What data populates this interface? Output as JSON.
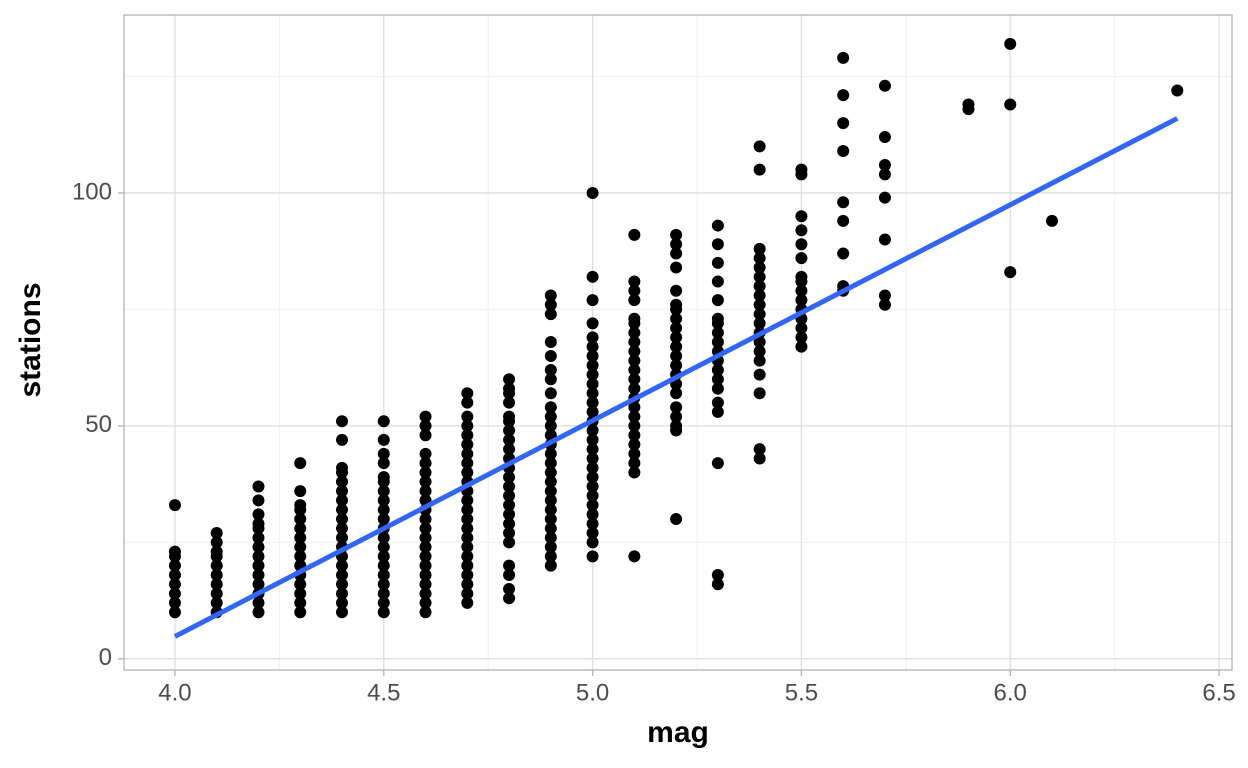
{
  "chart_data": {
    "type": "scatter",
    "x_label": "mag",
    "y_label": "stations",
    "xlim": [
      3.878,
      6.531
    ],
    "ylim": [
      -2.4,
      138.2
    ],
    "xticks": [
      {
        "value": 4.0,
        "label": "4.0"
      },
      4.5,
      {
        "value": 5.0,
        "label": "5.0"
      },
      5.5,
      {
        "value": 6.0,
        "label": "6.0"
      },
      6.5
    ],
    "yticks": [
      0,
      50,
      100
    ],
    "minor_xticks": [
      4.25,
      4.75,
      5.25,
      5.75,
      6.25
    ],
    "minor_yticks": [
      25,
      75,
      125
    ],
    "grid": true,
    "color": "#000000",
    "x": [
      4.0,
      4.0,
      4.0,
      4.0,
      4.0,
      4.0,
      4.0,
      4.0,
      4.0,
      4.1,
      4.1,
      4.1,
      4.1,
      4.1,
      4.1,
      4.1,
      4.1,
      4.1,
      4.1,
      4.2,
      4.2,
      4.2,
      4.2,
      4.2,
      4.2,
      4.2,
      4.2,
      4.2,
      4.2,
      4.2,
      4.2,
      4.2,
      4.2,
      4.3,
      4.3,
      4.3,
      4.3,
      4.3,
      4.3,
      4.3,
      4.3,
      4.3,
      4.3,
      4.3,
      4.3,
      4.3,
      4.3,
      4.3,
      4.4,
      4.4,
      4.4,
      4.4,
      4.4,
      4.4,
      4.4,
      4.4,
      4.4,
      4.4,
      4.4,
      4.4,
      4.4,
      4.4,
      4.4,
      4.4,
      4.4,
      4.4,
      4.4,
      4.5,
      4.5,
      4.5,
      4.5,
      4.5,
      4.5,
      4.5,
      4.5,
      4.5,
      4.5,
      4.5,
      4.5,
      4.5,
      4.5,
      4.5,
      4.5,
      4.5,
      4.5,
      4.5,
      4.5,
      4.6,
      4.6,
      4.6,
      4.6,
      4.6,
      4.6,
      4.6,
      4.6,
      4.6,
      4.6,
      4.6,
      4.6,
      4.6,
      4.6,
      4.6,
      4.6,
      4.6,
      4.6,
      4.6,
      4.6,
      4.6,
      4.7,
      4.7,
      4.7,
      4.7,
      4.7,
      4.7,
      4.7,
      4.7,
      4.7,
      4.7,
      4.7,
      4.7,
      4.7,
      4.7,
      4.7,
      4.7,
      4.7,
      4.7,
      4.7,
      4.7,
      4.7,
      4.7,
      4.7,
      4.8,
      4.8,
      4.8,
      4.8,
      4.8,
      4.8,
      4.8,
      4.8,
      4.8,
      4.8,
      4.8,
      4.8,
      4.8,
      4.8,
      4.8,
      4.8,
      4.8,
      4.8,
      4.8,
      4.8,
      4.8,
      4.8,
      4.8,
      4.9,
      4.9,
      4.9,
      4.9,
      4.9,
      4.9,
      4.9,
      4.9,
      4.9,
      4.9,
      4.9,
      4.9,
      4.9,
      4.9,
      4.9,
      4.9,
      4.9,
      4.9,
      4.9,
      4.9,
      4.9,
      4.9,
      4.9,
      4.9,
      4.9,
      4.9,
      5.0,
      5.0,
      5.0,
      5.0,
      5.0,
      5.0,
      5.0,
      5.0,
      5.0,
      5.0,
      5.0,
      5.0,
      5.0,
      5.0,
      5.0,
      5.0,
      5.0,
      5.0,
      5.0,
      5.0,
      5.0,
      5.0,
      5.0,
      5.0,
      5.0,
      5.0,
      5.0,
      5.0,
      5.1,
      5.1,
      5.1,
      5.1,
      5.1,
      5.1,
      5.1,
      5.1,
      5.1,
      5.1,
      5.1,
      5.1,
      5.1,
      5.1,
      5.1,
      5.1,
      5.1,
      5.1,
      5.1,
      5.1,
      5.1,
      5.1,
      5.1,
      5.2,
      5.2,
      5.2,
      5.2,
      5.2,
      5.2,
      5.2,
      5.2,
      5.2,
      5.2,
      5.2,
      5.2,
      5.2,
      5.2,
      5.2,
      5.2,
      5.2,
      5.2,
      5.2,
      5.2,
      5.2,
      5.3,
      5.3,
      5.3,
      5.3,
      5.3,
      5.3,
      5.3,
      5.3,
      5.3,
      5.3,
      5.3,
      5.3,
      5.3,
      5.3,
      5.3,
      5.3,
      5.3,
      5.3,
      5.3,
      5.4,
      5.4,
      5.4,
      5.4,
      5.4,
      5.4,
      5.4,
      5.4,
      5.4,
      5.4,
      5.4,
      5.4,
      5.4,
      5.4,
      5.4,
      5.4,
      5.4,
      5.4,
      5.4,
      5.5,
      5.5,
      5.5,
      5.5,
      5.5,
      5.5,
      5.5,
      5.5,
      5.5,
      5.5,
      5.5,
      5.5,
      5.5,
      5.5,
      5.5,
      5.6,
      5.6,
      5.6,
      5.6,
      5.6,
      5.6,
      5.6,
      5.6,
      5.6,
      5.7,
      5.7,
      5.7,
      5.7,
      5.7,
      5.7,
      5.7,
      5.7,
      5.9,
      5.9,
      6.0,
      6.0,
      6.0,
      6.1,
      6.4
    ],
    "y": [
      10,
      12,
      14,
      16,
      18,
      20,
      22,
      23,
      33,
      10,
      12,
      14,
      16,
      18,
      20,
      22,
      23,
      25,
      27,
      10,
      12,
      14,
      16,
      18,
      20,
      22,
      24,
      26,
      28,
      29,
      31,
      34,
      37,
      10,
      12,
      14,
      16,
      18,
      20,
      22,
      24,
      26,
      28,
      30,
      32,
      33,
      36,
      42,
      10,
      12,
      14,
      16,
      18,
      20,
      22,
      24,
      26,
      28,
      30,
      32,
      34,
      36,
      38,
      40,
      41,
      47,
      51,
      10,
      12,
      14,
      16,
      18,
      20,
      22,
      24,
      26,
      28,
      30,
      32,
      34,
      36,
      38,
      39,
      42,
      44,
      47,
      51,
      10,
      12,
      14,
      16,
      18,
      20,
      22,
      24,
      26,
      28,
      30,
      32,
      34,
      36,
      38,
      40,
      42,
      44,
      48,
      50,
      52,
      12,
      14,
      16,
      18,
      20,
      22,
      24,
      26,
      28,
      30,
      32,
      34,
      36,
      38,
      40,
      42,
      44,
      46,
      48,
      50,
      52,
      55,
      57,
      13,
      15,
      18,
      20,
      25,
      27,
      29,
      31,
      33,
      35,
      37,
      39,
      41,
      43,
      45,
      47,
      49,
      51,
      52,
      55,
      57,
      58,
      60,
      20,
      22,
      24,
      26,
      28,
      30,
      32,
      34,
      36,
      38,
      40,
      42,
      44,
      46,
      48,
      50,
      52,
      54,
      57,
      60,
      62,
      65,
      68,
      74,
      76,
      78,
      22,
      25,
      27,
      29,
      31,
      33,
      35,
      37,
      39,
      41,
      43,
      45,
      47,
      49,
      51,
      53,
      55,
      57,
      59,
      61,
      63,
      65,
      67,
      69,
      72,
      77,
      82,
      100,
      22,
      40,
      42,
      44,
      46,
      48,
      50,
      52,
      54,
      56,
      58,
      60,
      62,
      64,
      66,
      68,
      70,
      72,
      73,
      77,
      79,
      81,
      91,
      30,
      49,
      50,
      52,
      54,
      57,
      59,
      61,
      63,
      65,
      67,
      69,
      71,
      73,
      75,
      76,
      79,
      84,
      87,
      89,
      91,
      16,
      18,
      42,
      53,
      55,
      58,
      60,
      62,
      64,
      66,
      68,
      70,
      72,
      73,
      77,
      81,
      85,
      89,
      93,
      43,
      45,
      57,
      61,
      64,
      66,
      68,
      70,
      72,
      74,
      76,
      78,
      80,
      82,
      84,
      86,
      88,
      105,
      110,
      67,
      69,
      71,
      73,
      75,
      77,
      79,
      81,
      82,
      86,
      89,
      92,
      95,
      104,
      105,
      79,
      80,
      87,
      94,
      98,
      109,
      115,
      121,
      129,
      76,
      78,
      90,
      99,
      104,
      106,
      112,
      123,
      118,
      119,
      83,
      119,
      132,
      94,
      122
    ],
    "trend_line": {
      "color": "#3366ff",
      "x": [
        4.0,
        6.4
      ],
      "y": [
        4.8,
        116
      ]
    }
  }
}
